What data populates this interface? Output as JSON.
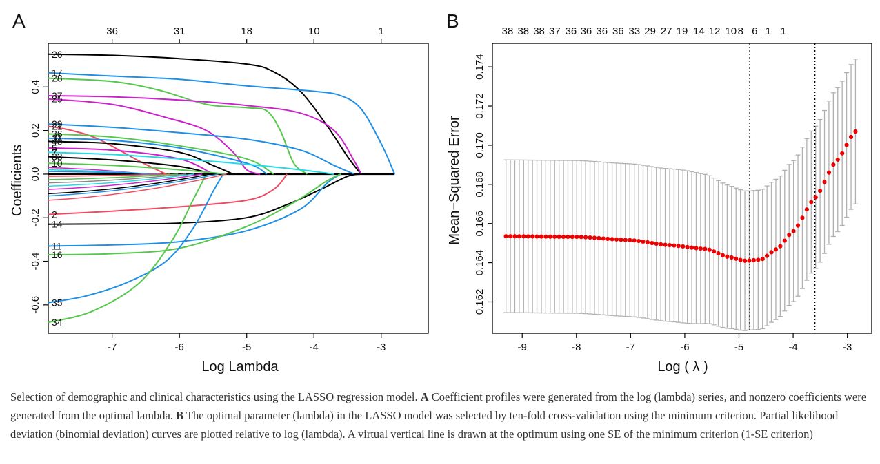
{
  "panelA": {
    "label": "A",
    "xlabel": "Log Lambda",
    "ylabel": "Coefficients",
    "xticks": [
      "-7",
      "-6",
      "-5",
      "-4",
      "-3"
    ],
    "xtick_values": [
      -7,
      -6,
      -5,
      -4,
      -3
    ],
    "yticks": [
      "-0.6",
      "-0.4",
      "-0.2",
      "0.0",
      "0.2",
      "0.4"
    ],
    "ytick_values": [
      -0.6,
      -0.4,
      -0.2,
      0.0,
      0.2,
      0.4
    ],
    "top_ticks": [
      "36",
      "31",
      "18",
      "10",
      "1"
    ],
    "top_tick_values": [
      -7,
      -6,
      -5,
      -4,
      -3
    ],
    "xlim": [
      -7.95,
      -2.3
    ],
    "ylim": [
      -0.73,
      0.6
    ],
    "colors": {
      "black": "#000000",
      "blue": "#1f8fe6",
      "green": "#57c84d",
      "magenta": "#cc22cc",
      "cyan": "#22dbe6",
      "red": "#ee4a60",
      "gray": "#888888"
    }
  },
  "panelB": {
    "label": "B",
    "xlabel": "Log ( λ )",
    "ylabel": "Mean−Squared Error",
    "xticks": [
      "-9",
      "-8",
      "-7",
      "-6",
      "-5",
      "-4",
      "-3"
    ],
    "xtick_values": [
      -9,
      -8,
      -7,
      -6,
      -5,
      -4,
      -3
    ],
    "yticks": [
      "0.162",
      "0.164",
      "0.166",
      "0.168",
      "0.170",
      "0.172",
      "0.174"
    ],
    "ytick_values": [
      0.162,
      0.164,
      0.166,
      0.168,
      0.17,
      0.172,
      0.174
    ],
    "top_ticks": [
      "38",
      "38",
      "38",
      "37",
      "36",
      "36",
      "36",
      "36",
      "33",
      "29",
      "27",
      "19",
      "14",
      "12",
      "10",
      "8",
      "6",
      "1",
      "1"
    ],
    "top_tick_values": [
      -9.27,
      -8.98,
      -8.69,
      -8.4,
      -8.1,
      -7.82,
      -7.53,
      -7.23,
      -6.93,
      -6.64,
      -6.34,
      -6.05,
      -5.74,
      -5.45,
      -5.15,
      -4.97,
      -4.71,
      -4.46,
      -4.18
    ],
    "xlim": [
      -9.55,
      -2.55
    ],
    "ylim": [
      0.1604,
      0.1752
    ],
    "vlines": [
      -4.8,
      -3.6
    ],
    "colors": {
      "points": "#ee0000",
      "errorbars": "#aaaaaa",
      "vline": "#000000"
    }
  },
  "caption": {
    "intro": "Selection of demographic and clinical characteristics using the LASSO regression model. ",
    "a_label": "A",
    "a_text": " Coefficient profiles were generated from the log (lambda) series, and nonzero coefficients were generated from the optimal lambda. ",
    "b_label": "B",
    "b_text": " The optimal parameter (lambda) in the LASSO model was selected by ten-fold cross-validation using the minimum criterion. Partial likelihood deviation (binomial deviation) curves are plotted relative to log (lambda). A virtual vertical line is drawn at the optimum using one SE of the minimum criterion (1-SE criterion)"
  },
  "chart_data": [
    {
      "type": "line",
      "title": "A",
      "xlabel": "Log Lambda",
      "ylabel": "Coefficients",
      "xlim": [
        -7.95,
        -2.3
      ],
      "ylim": [
        -0.73,
        0.6
      ],
      "series": [
        {
          "name": "26",
          "color": "#000000",
          "points": [
            [
              -7.95,
              0.55
            ],
            [
              -7.0,
              0.545
            ],
            [
              -6.0,
              0.53
            ],
            [
              -5.0,
              0.505
            ],
            [
              -4.6,
              0.47
            ],
            [
              -4.2,
              0.38
            ],
            [
              -3.8,
              0.22
            ],
            [
              -3.5,
              0.08
            ],
            [
              -3.3,
              0.0
            ]
          ]
        },
        {
          "name": "17",
          "color": "#1f8fe6",
          "points": [
            [
              -7.95,
              0.465
            ],
            [
              -7.0,
              0.45
            ],
            [
              -6.0,
              0.435
            ],
            [
              -5.0,
              0.405
            ],
            [
              -4.0,
              0.38
            ],
            [
              -3.6,
              0.36
            ],
            [
              -3.3,
              0.3
            ],
            [
              -3.0,
              0.14
            ],
            [
              -2.8,
              0.0
            ]
          ]
        },
        {
          "name": "28",
          "color": "#57c84d",
          "points": [
            [
              -7.95,
              0.44
            ],
            [
              -7.0,
              0.425
            ],
            [
              -6.3,
              0.385
            ],
            [
              -5.6,
              0.32
            ],
            [
              -5.0,
              0.305
            ],
            [
              -4.7,
              0.29
            ],
            [
              -4.5,
              0.2
            ],
            [
              -4.3,
              0.05
            ],
            [
              -4.1,
              0.0
            ]
          ]
        },
        {
          "name": "37",
          "color": "#cc22cc",
          "points": [
            [
              -7.95,
              0.36
            ],
            [
              -7.0,
              0.355
            ],
            [
              -6.0,
              0.34
            ],
            [
              -5.0,
              0.315
            ],
            [
              -4.2,
              0.28
            ],
            [
              -3.7,
              0.2
            ],
            [
              -3.4,
              0.06
            ],
            [
              -3.3,
              0.0
            ]
          ]
        },
        {
          "name": "25",
          "color": "#cc22cc",
          "points": [
            [
              -7.95,
              0.345
            ],
            [
              -7.0,
              0.32
            ],
            [
              -6.2,
              0.26
            ],
            [
              -5.6,
              0.2
            ],
            [
              -5.2,
              0.1
            ],
            [
              -5.0,
              0.02
            ],
            [
              -4.8,
              0.0
            ]
          ]
        },
        {
          "name": "29",
          "color": "#1f8fe6",
          "points": [
            [
              -7.95,
              0.23
            ],
            [
              -7.0,
              0.215
            ],
            [
              -6.0,
              0.19
            ],
            [
              -5.0,
              0.16
            ],
            [
              -4.2,
              0.11
            ],
            [
              -3.7,
              0.04
            ],
            [
              -3.4,
              0.0
            ]
          ]
        },
        {
          "name": "21",
          "color": "#ee4a60",
          "points": [
            [
              -7.95,
              0.22
            ],
            [
              -7.6,
              0.2
            ],
            [
              -7.2,
              0.16
            ],
            [
              -6.6,
              0.06
            ],
            [
              -6.2,
              0.0
            ]
          ]
        },
        {
          "name": "36",
          "color": "#57c84d",
          "points": [
            [
              -7.95,
              0.185
            ],
            [
              -7.0,
              0.17
            ],
            [
              -6.0,
              0.13
            ],
            [
              -5.0,
              0.07
            ],
            [
              -4.6,
              0.0
            ]
          ]
        },
        {
          "name": "31",
          "color": "#1f8fe6",
          "points": [
            [
              -7.95,
              0.165
            ],
            [
              -7.0,
              0.155
            ],
            [
              -6.0,
              0.12
            ],
            [
              -5.0,
              0.05
            ],
            [
              -4.7,
              0.0
            ]
          ]
        },
        {
          "name": "40",
          "color": "#000000",
          "points": [
            [
              -7.95,
              0.15
            ],
            [
              -7.0,
              0.14
            ],
            [
              -6.0,
              0.1
            ],
            [
              -5.5,
              0.04
            ],
            [
              -5.2,
              0.0
            ]
          ]
        },
        {
          "name": "5",
          "color": "#cc22cc",
          "points": [
            [
              -7.95,
              0.12
            ],
            [
              -7.0,
              0.11
            ],
            [
              -6.0,
              0.07
            ],
            [
              -5.5,
              0.0
            ]
          ]
        },
        {
          "name": "7",
          "color": "#22dbe6",
          "points": [
            [
              -7.95,
              0.1
            ],
            [
              -7.0,
              0.09
            ],
            [
              -6.0,
              0.07
            ],
            [
              -5.0,
              0.045
            ],
            [
              -4.2,
              0.02
            ],
            [
              -3.7,
              0.0
            ]
          ]
        },
        {
          "name": "33",
          "color": "#000000",
          "points": [
            [
              -7.95,
              0.08
            ],
            [
              -7.0,
              0.065
            ],
            [
              -6.0,
              0.035
            ],
            [
              -5.5,
              0.0
            ]
          ]
        },
        {
          "name": "10",
          "color": "#57c84d",
          "points": [
            [
              -7.95,
              0.05
            ],
            [
              -7.0,
              0.04
            ],
            [
              -6.0,
              0.02
            ],
            [
              -5.3,
              0.0
            ]
          ]
        },
        {
          "name": "2",
          "color": "#ee4a60",
          "points": [
            [
              -7.95,
              -0.185
            ],
            [
              -7.0,
              -0.17
            ],
            [
              -6.0,
              -0.15
            ],
            [
              -5.0,
              -0.12
            ],
            [
              -4.6,
              -0.07
            ],
            [
              -4.4,
              0.0
            ]
          ]
        },
        {
          "name": "14",
          "color": "#000000",
          "points": [
            [
              -7.95,
              -0.23
            ],
            [
              -7.0,
              -0.228
            ],
            [
              -6.0,
              -0.225
            ],
            [
              -5.0,
              -0.2
            ],
            [
              -4.4,
              -0.14
            ],
            [
              -3.9,
              -0.07
            ],
            [
              -3.5,
              -0.01
            ],
            [
              -3.3,
              0.0
            ]
          ]
        },
        {
          "name": "11",
          "color": "#1f8fe6",
          "points": [
            [
              -7.95,
              -0.33
            ],
            [
              -7.0,
              -0.325
            ],
            [
              -6.0,
              -0.31
            ],
            [
              -5.0,
              -0.26
            ],
            [
              -4.2,
              -0.16
            ],
            [
              -3.8,
              -0.04
            ],
            [
              -3.6,
              0.0
            ]
          ]
        },
        {
          "name": "16",
          "color": "#57c84d",
          "points": [
            [
              -7.95,
              -0.37
            ],
            [
              -7.0,
              -0.365
            ],
            [
              -6.0,
              -0.34
            ],
            [
              -5.0,
              -0.24
            ],
            [
              -4.3,
              -0.13
            ],
            [
              -3.8,
              -0.03
            ],
            [
              -3.6,
              0.0
            ]
          ]
        },
        {
          "name": "35",
          "color": "#1f8fe6",
          "points": [
            [
              -7.95,
              -0.59
            ],
            [
              -7.4,
              -0.56
            ],
            [
              -6.8,
              -0.5
            ],
            [
              -6.2,
              -0.4
            ],
            [
              -5.8,
              -0.25
            ],
            [
              -5.5,
              -0.08
            ],
            [
              -5.35,
              0.0
            ]
          ]
        },
        {
          "name": "34",
          "color": "#57c84d",
          "points": [
            [
              -7.95,
              -0.68
            ],
            [
              -7.3,
              -0.63
            ],
            [
              -6.6,
              -0.5
            ],
            [
              -6.1,
              -0.3
            ],
            [
              -5.8,
              -0.12
            ],
            [
              -5.6,
              0.0
            ]
          ]
        }
      ]
    },
    {
      "type": "scatter",
      "title": "B",
      "xlabel": "Log ( λ )",
      "ylabel": "Mean−Squared Error",
      "xlim": [
        -9.55,
        -2.55
      ],
      "ylim": [
        0.1604,
        0.1752
      ],
      "n_points": 80,
      "x_range": [
        -9.3,
        -2.85
      ],
      "profile": [
        [
          -9.3,
          0.16535
        ],
        [
          -8.0,
          0.16532
        ],
        [
          -7.0,
          0.16515
        ],
        [
          -6.3,
          0.1649
        ],
        [
          -5.6,
          0.1647
        ],
        [
          -5.2,
          0.1643
        ],
        [
          -4.9,
          0.1641
        ],
        [
          -4.6,
          0.16415
        ],
        [
          -4.3,
          0.1647
        ],
        [
          -4.0,
          0.1656
        ],
        [
          -3.6,
          0.1673
        ],
        [
          -3.2,
          0.1692
        ],
        [
          -2.85,
          0.1707
        ]
      ],
      "errorbar_halfwidth": [
        [
          -9.3,
          0.0039
        ],
        [
          -6.0,
          0.0039
        ],
        [
          -4.8,
          0.00355
        ],
        [
          -4.0,
          0.0036
        ],
        [
          -2.85,
          0.0037
        ]
      ],
      "vlines": [
        -4.8,
        -3.6
      ]
    }
  ]
}
